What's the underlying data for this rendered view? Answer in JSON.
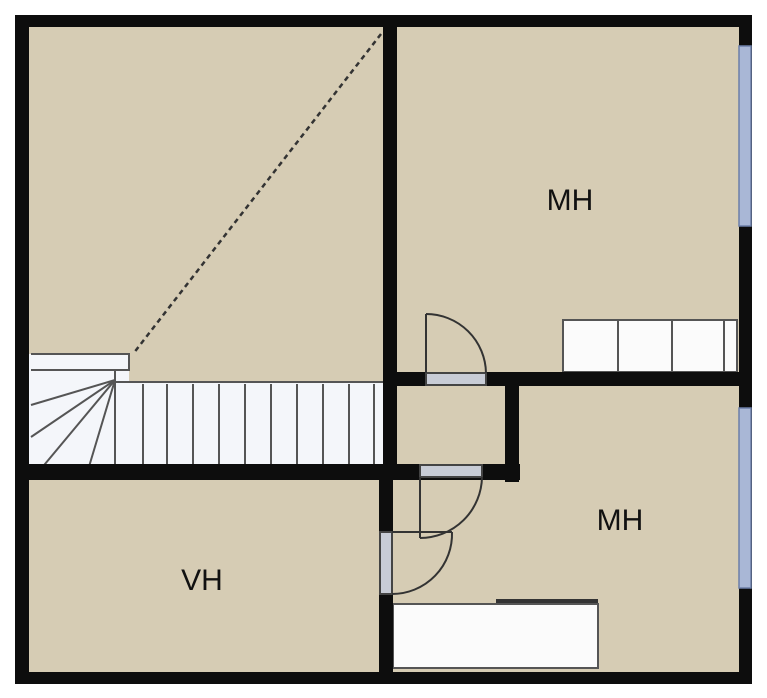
{
  "rooms": {
    "upper_right": {
      "label": "MH"
    },
    "lower_right": {
      "label": "MH"
    },
    "lower_left": {
      "label": "VH"
    }
  },
  "colors": {
    "floor": "#d6ccb4",
    "wall": "#0d0d0d",
    "window": "#a9b7d6",
    "window_edge": "#6c7fa8",
    "door_frame": "#c8ccd6",
    "stair_fill": "#f4f6fa",
    "closet_fill": "#fbfbfb",
    "line": "#555555"
  }
}
